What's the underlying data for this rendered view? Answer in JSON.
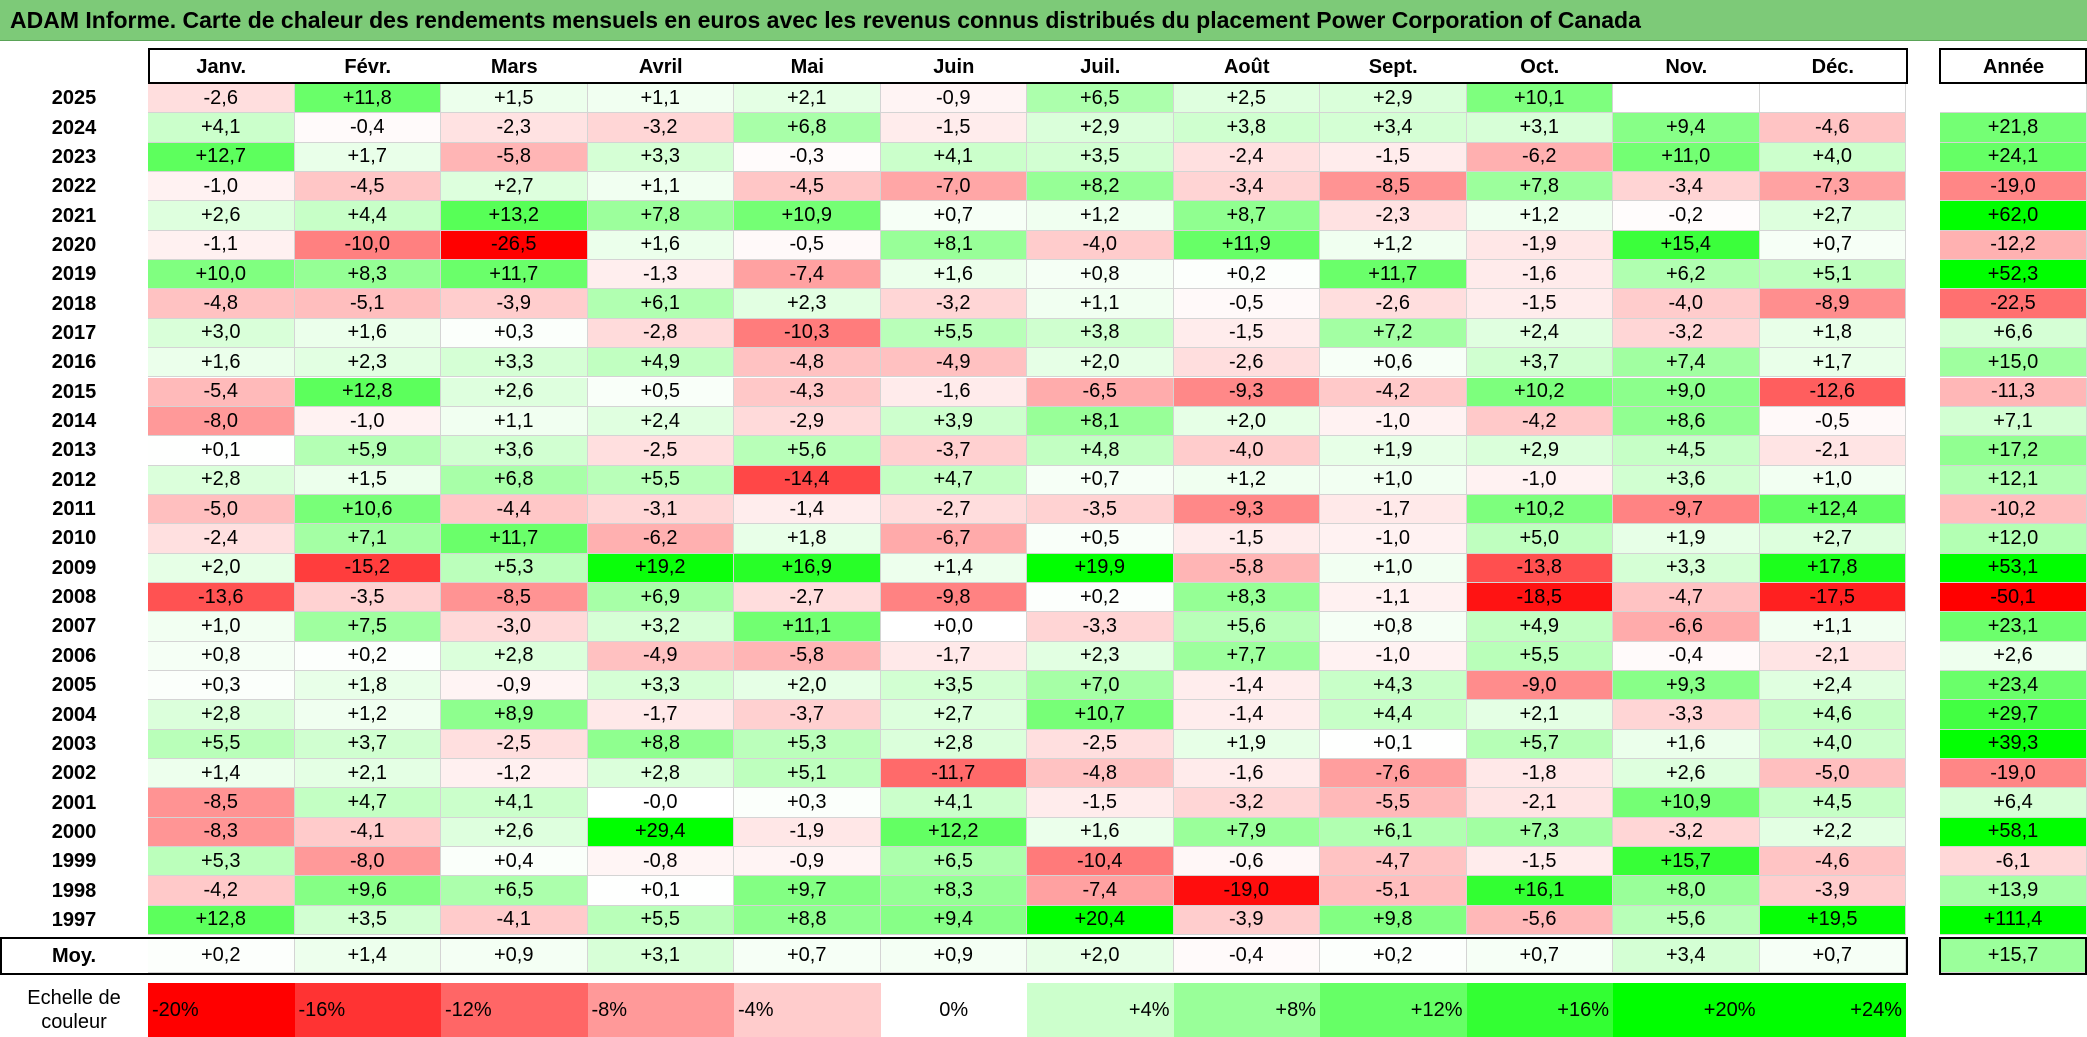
{
  "title": "ADAM Informe. Carte de chaleur des rendements mensuels en euros avec les revenus connus distribués du placement Power Corporation of Canada",
  "colors": {
    "title_bg": "#7dca78",
    "max_red": "#ff0000",
    "max_green": "#00ff00",
    "neutral": "#ffffff"
  },
  "chart_data": {
    "type": "heatmap",
    "months": [
      "Janv.",
      "Févr.",
      "Mars",
      "Avril",
      "Mai",
      "Juin",
      "Juil.",
      "Août",
      "Sept.",
      "Oct.",
      "Nov.",
      "Déc."
    ],
    "year_header": "Année",
    "avg_label": "Moy.",
    "rows": [
      {
        "year": "2025",
        "values": [
          "-2,6",
          "+11,8",
          "+1,5",
          "+1,1",
          "+2,1",
          "-0,9",
          "+6,5",
          "+2,5",
          "+2,9",
          "+10,1",
          "",
          ""
        ],
        "annual": ""
      },
      {
        "year": "2024",
        "values": [
          "+4,1",
          "-0,4",
          "-2,3",
          "-3,2",
          "+6,8",
          "-1,5",
          "+2,9",
          "+3,8",
          "+3,4",
          "+3,1",
          "+9,4",
          "-4,6"
        ],
        "annual": "+21,8"
      },
      {
        "year": "2023",
        "values": [
          "+12,7",
          "+1,7",
          "-5,8",
          "+3,3",
          "-0,3",
          "+4,1",
          "+3,5",
          "-2,4",
          "-1,5",
          "-6,2",
          "+11,0",
          "+4,0"
        ],
        "annual": "+24,1"
      },
      {
        "year": "2022",
        "values": [
          "-1,0",
          "-4,5",
          "+2,7",
          "+1,1",
          "-4,5",
          "-7,0",
          "+8,2",
          "-3,4",
          "-8,5",
          "+7,8",
          "-3,4",
          "-7,3"
        ],
        "annual": "-19,0"
      },
      {
        "year": "2021",
        "values": [
          "+2,6",
          "+4,4",
          "+13,2",
          "+7,8",
          "+10,9",
          "+0,7",
          "+1,2",
          "+8,7",
          "-2,3",
          "+1,2",
          "-0,2",
          "+2,7"
        ],
        "annual": "+62,0"
      },
      {
        "year": "2020",
        "values": [
          "-1,1",
          "-10,0",
          "-26,5",
          "+1,6",
          "-0,5",
          "+8,1",
          "-4,0",
          "+11,9",
          "+1,2",
          "-1,9",
          "+15,4",
          "+0,7"
        ],
        "annual": "-12,2"
      },
      {
        "year": "2019",
        "values": [
          "+10,0",
          "+8,3",
          "+11,7",
          "-1,3",
          "-7,4",
          "+1,6",
          "+0,8",
          "+0,2",
          "+11,7",
          "-1,6",
          "+6,2",
          "+5,1"
        ],
        "annual": "+52,3"
      },
      {
        "year": "2018",
        "values": [
          "-4,8",
          "-5,1",
          "-3,9",
          "+6,1",
          "+2,3",
          "-3,2",
          "+1,1",
          "-0,5",
          "-2,6",
          "-1,5",
          "-4,0",
          "-8,9"
        ],
        "annual": "-22,5"
      },
      {
        "year": "2017",
        "values": [
          "+3,0",
          "+1,6",
          "+0,3",
          "-2,8",
          "-10,3",
          "+5,5",
          "+3,8",
          "-1,5",
          "+7,2",
          "+2,4",
          "-3,2",
          "+1,8"
        ],
        "annual": "+6,6"
      },
      {
        "year": "2016",
        "values": [
          "+1,6",
          "+2,3",
          "+3,3",
          "+4,9",
          "-4,8",
          "-4,9",
          "+2,0",
          "-2,6",
          "+0,6",
          "+3,7",
          "+7,4",
          "+1,7"
        ],
        "annual": "+15,0"
      },
      {
        "year": "2015",
        "values": [
          "-5,4",
          "+12,8",
          "+2,6",
          "+0,5",
          "-4,3",
          "-1,6",
          "-6,5",
          "-9,3",
          "-4,2",
          "+10,2",
          "+9,0",
          "-12,6"
        ],
        "annual": "-11,3"
      },
      {
        "year": "2014",
        "values": [
          "-8,0",
          "-1,0",
          "+1,1",
          "+2,4",
          "-2,9",
          "+3,9",
          "+8,1",
          "+2,0",
          "-1,0",
          "-4,2",
          "+8,6",
          "-0,5"
        ],
        "annual": "+7,1"
      },
      {
        "year": "2013",
        "values": [
          "+0,1",
          "+5,9",
          "+3,6",
          "-2,5",
          "+5,6",
          "-3,7",
          "+4,8",
          "-4,0",
          "+1,9",
          "+2,9",
          "+4,5",
          "-2,1"
        ],
        "annual": "+17,2"
      },
      {
        "year": "2012",
        "values": [
          "+2,8",
          "+1,5",
          "+6,8",
          "+5,5",
          "-14,4",
          "+4,7",
          "+0,7",
          "+1,2",
          "+1,0",
          "-1,0",
          "+3,6",
          "+1,0"
        ],
        "annual": "+12,1"
      },
      {
        "year": "2011",
        "values": [
          "-5,0",
          "+10,6",
          "-4,4",
          "-3,1",
          "-1,4",
          "-2,7",
          "-3,5",
          "-9,3",
          "-1,7",
          "+10,2",
          "-9,7",
          "+12,4"
        ],
        "annual": "-10,2"
      },
      {
        "year": "2010",
        "values": [
          "-2,4",
          "+7,1",
          "+11,7",
          "-6,2",
          "+1,8",
          "-6,7",
          "+0,5",
          "-1,5",
          "-1,0",
          "+5,0",
          "+1,9",
          "+2,7"
        ],
        "annual": "+12,0"
      },
      {
        "year": "2009",
        "values": [
          "+2,0",
          "-15,2",
          "+5,3",
          "+19,2",
          "+16,9",
          "+1,4",
          "+19,9",
          "-5,8",
          "+1,0",
          "-13,8",
          "+3,3",
          "+17,8"
        ],
        "annual": "+53,1"
      },
      {
        "year": "2008",
        "values": [
          "-13,6",
          "-3,5",
          "-8,5",
          "+6,9",
          "-2,7",
          "-9,8",
          "+0,2",
          "+8,3",
          "-1,1",
          "-18,5",
          "-4,7",
          "-17,5"
        ],
        "annual": "-50,1"
      },
      {
        "year": "2007",
        "values": [
          "+1,0",
          "+7,5",
          "-3,0",
          "+3,2",
          "+11,1",
          "+0,0",
          "-3,3",
          "+5,6",
          "+0,8",
          "+4,9",
          "-6,6",
          "+1,1"
        ],
        "annual": "+23,1"
      },
      {
        "year": "2006",
        "values": [
          "+0,8",
          "+0,2",
          "+2,8",
          "-4,9",
          "-5,8",
          "-1,7",
          "+2,3",
          "+7,7",
          "-1,0",
          "+5,5",
          "-0,4",
          "-2,1"
        ],
        "annual": "+2,6"
      },
      {
        "year": "2005",
        "values": [
          "+0,3",
          "+1,8",
          "-0,9",
          "+3,3",
          "+2,0",
          "+3,5",
          "+7,0",
          "-1,4",
          "+4,3",
          "-9,0",
          "+9,3",
          "+2,4"
        ],
        "annual": "+23,4"
      },
      {
        "year": "2004",
        "values": [
          "+2,8",
          "+1,2",
          "+8,9",
          "-1,7",
          "-3,7",
          "+2,7",
          "+10,7",
          "-1,4",
          "+4,4",
          "+2,1",
          "-3,3",
          "+4,6"
        ],
        "annual": "+29,7"
      },
      {
        "year": "2003",
        "values": [
          "+5,5",
          "+3,7",
          "-2,5",
          "+8,8",
          "+5,3",
          "+2,8",
          "-2,5",
          "+1,9",
          "+0,1",
          "+5,7",
          "+1,6",
          "+4,0"
        ],
        "annual": "+39,3"
      },
      {
        "year": "2002",
        "values": [
          "+1,4",
          "+2,1",
          "-1,2",
          "+2,8",
          "+5,1",
          "-11,7",
          "-4,8",
          "-1,6",
          "-7,6",
          "-1,8",
          "+2,6",
          "-5,0"
        ],
        "annual": "-19,0"
      },
      {
        "year": "2001",
        "values": [
          "-8,5",
          "+4,7",
          "+4,1",
          "-0,0",
          "+0,3",
          "+4,1",
          "-1,5",
          "-3,2",
          "-5,5",
          "-2,1",
          "+10,9",
          "+4,5"
        ],
        "annual": "+6,4"
      },
      {
        "year": "2000",
        "values": [
          "-8,3",
          "-4,1",
          "+2,6",
          "+29,4",
          "-1,9",
          "+12,2",
          "+1,6",
          "+7,9",
          "+6,1",
          "+7,3",
          "-3,2",
          "+2,2"
        ],
        "annual": "+58,1"
      },
      {
        "year": "1999",
        "values": [
          "+5,3",
          "-8,0",
          "+0,4",
          "-0,8",
          "-0,9",
          "+6,5",
          "-10,4",
          "-0,6",
          "-4,7",
          "-1,5",
          "+15,7",
          "-4,6"
        ],
        "annual": "-6,1"
      },
      {
        "year": "1998",
        "values": [
          "-4,2",
          "+9,6",
          "+6,5",
          "+0,1",
          "+9,7",
          "+8,3",
          "-7,4",
          "-19,0",
          "-5,1",
          "+16,1",
          "+8,0",
          "-3,9"
        ],
        "annual": "+13,9"
      },
      {
        "year": "1997",
        "values": [
          "+12,8",
          "+3,5",
          "-4,1",
          "+5,5",
          "+8,8",
          "+9,4",
          "+20,4",
          "-3,9",
          "+9,8",
          "-5,6",
          "+5,6",
          "+19,5"
        ],
        "annual": "+111,4"
      }
    ],
    "averages": [
      "+0,2",
      "+1,4",
      "+0,9",
      "+3,1",
      "+0,7",
      "+0,9",
      "+2,0",
      "-0,4",
      "+0,2",
      "+0,7",
      "+3,4",
      "+0,7"
    ],
    "avg_annual": "+15,7",
    "scale_label": "Echelle de couleur",
    "scale": [
      {
        "label": "-20%",
        "value": -20
      },
      {
        "label": "-16%",
        "value": -16
      },
      {
        "label": "-12%",
        "value": -12
      },
      {
        "label": "-8%",
        "value": -8
      },
      {
        "label": "-4%",
        "value": -4
      },
      {
        "label": "0%",
        "value": 0
      },
      {
        "label": "+4%",
        "value": 4
      },
      {
        "label": "+8%",
        "value": 8
      },
      {
        "label": "+12%",
        "value": 12
      },
      {
        "label": "+16%",
        "value": 16
      },
      {
        "label": "+20%",
        "value": 20
      },
      {
        "label": "+24%",
        "value": 24
      }
    ]
  }
}
